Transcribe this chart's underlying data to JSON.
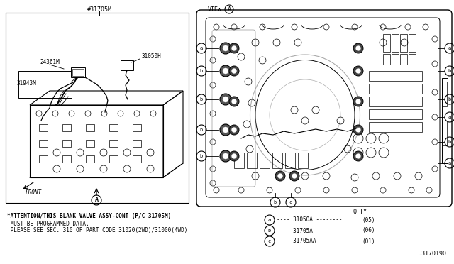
{
  "bg_color": "#ffffff",
  "lc": "#000000",
  "gray": "#888888",
  "lt_gray": "#cccccc",
  "part_number_left": "#31705M",
  "label_24361M": "24361M",
  "label_31050H": "31050H",
  "label_31943M": "31943M",
  "label_front": "FRONT",
  "view_label": "VIEW",
  "attention_line1": "*ATTENTION/THIS BLANK VALVE ASSY-CONT (P/C 31705M)",
  "attention_line2": " MUST BE PROGRAMMED DATA.",
  "attention_line3": " PLEASE SEE SEC. 310 OF PART CODE 31020(2WD)/31000(4WD)",
  "qty_title": "Q'TY",
  "legend_a_part": "31050A",
  "legend_b_part": "31705A",
  "legend_c_part": "31705AA",
  "legend_a_qty": "(05)",
  "legend_b_qty": "(06)",
  "legend_c_qty": "(01)",
  "drawing_id": "J3170190"
}
